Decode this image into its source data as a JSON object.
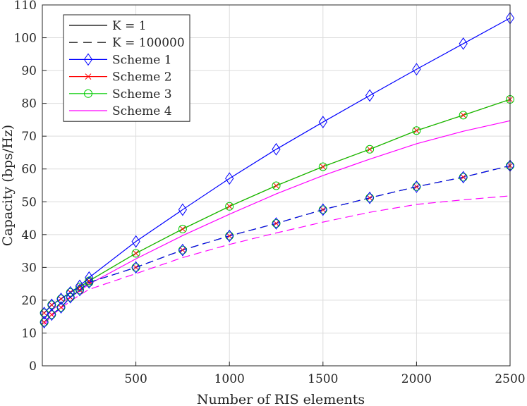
{
  "chart_data": {
    "type": "line",
    "title": "",
    "xlabel": "Number of RIS elements",
    "ylabel": "Capacity (bps/Hz)",
    "xlim": [
      0,
      2500
    ],
    "ylim": [
      0,
      110
    ],
    "xticks": [
      500,
      1000,
      1500,
      2000,
      2500
    ],
    "yticks": [
      0,
      10,
      20,
      30,
      40,
      50,
      60,
      70,
      80,
      90,
      100,
      110
    ],
    "grid": true,
    "legend_position": "top-left",
    "legend": [
      {
        "label": "K = 1",
        "color": "#000000",
        "dash": "solid",
        "marker": "none"
      },
      {
        "label": "K = 100000",
        "color": "#000000",
        "dash": "dashed",
        "marker": "none"
      },
      {
        "label": "Scheme 1",
        "color": "#0000ff",
        "dash": "solid",
        "marker": "diamond"
      },
      {
        "label": "Scheme 2",
        "color": "#ff0000",
        "dash": "solid",
        "marker": "x"
      },
      {
        "label": "Scheme 3",
        "color": "#00cc00",
        "dash": "solid",
        "marker": "circle"
      },
      {
        "label": "Scheme 4",
        "color": "#ff00ff",
        "dash": "solid",
        "marker": "none"
      }
    ],
    "x": [
      10,
      50,
      100,
      150,
      200,
      250,
      500,
      750,
      1000,
      1250,
      1500,
      1750,
      2000,
      2250,
      2500
    ],
    "series": [
      {
        "name": "Scheme 1",
        "K": "1",
        "color": "#0000ff",
        "dash": "solid",
        "marker": "diamond",
        "values": [
          16.1,
          18.6,
          20.4,
          22.4,
          24.4,
          26.9,
          37.9,
          47.6,
          57.1,
          66.0,
          74.3,
          82.4,
          90.4,
          98.2,
          106.0
        ]
      },
      {
        "name": "Scheme 2",
        "K": "1",
        "color": "#ff0000",
        "dash": "solid",
        "marker": "x",
        "values": [
          16.1,
          18.6,
          20.4,
          22.4,
          24.0,
          25.9,
          34.3,
          41.7,
          48.6,
          54.9,
          60.7,
          66.0,
          71.7,
          76.4,
          81.2
        ]
      },
      {
        "name": "Scheme 3",
        "K": "1",
        "color": "#00cc00",
        "dash": "solid",
        "marker": "circle",
        "values": [
          16.1,
          18.6,
          20.4,
          22.4,
          24.0,
          25.9,
          34.3,
          41.7,
          48.6,
          54.9,
          60.7,
          66.0,
          71.7,
          76.4,
          81.2
        ]
      },
      {
        "name": "Scheme 4",
        "K": "1",
        "color": "#ff00ff",
        "dash": "solid",
        "marker": "none",
        "values": [
          14.2,
          17.0,
          19.0,
          21.0,
          22.8,
          24.9,
          32.6,
          39.7,
          46.2,
          52.4,
          58.0,
          63.0,
          67.7,
          71.5,
          74.7
        ]
      },
      {
        "name": "Scheme 1",
        "K": "100000",
        "color": "#0000ff",
        "dash": "dashed",
        "marker": "diamond",
        "values": [
          13.3,
          15.6,
          17.8,
          20.9,
          23.1,
          25.4,
          30.0,
          35.3,
          39.6,
          43.4,
          47.6,
          51.2,
          54.6,
          57.5,
          61.0
        ]
      },
      {
        "name": "Scheme 2",
        "K": "100000",
        "color": "#ff0000",
        "dash": "dashed",
        "marker": "x",
        "values": [
          13.3,
          15.6,
          17.8,
          20.9,
          23.1,
          25.4,
          30.0,
          35.3,
          39.6,
          43.4,
          47.6,
          51.2,
          54.6,
          57.5,
          61.0
        ]
      },
      {
        "name": "Scheme 3",
        "K": "100000",
        "color": "#00cc00",
        "dash": "dashed",
        "marker": "circle",
        "values": [
          13.3,
          15.6,
          17.8,
          20.9,
          23.1,
          25.4,
          30.0,
          35.3,
          39.6,
          43.4,
          47.6,
          51.2,
          54.6,
          57.5,
          61.0
        ]
      },
      {
        "name": "Scheme 4",
        "K": "100000",
        "color": "#ff00ff",
        "dash": "dashed",
        "marker": "none",
        "values": [
          12.6,
          15.3,
          17.6,
          19.7,
          21.6,
          23.3,
          28.1,
          33.0,
          37.0,
          40.5,
          43.8,
          46.8,
          49.2,
          50.6,
          51.8
        ]
      }
    ]
  }
}
